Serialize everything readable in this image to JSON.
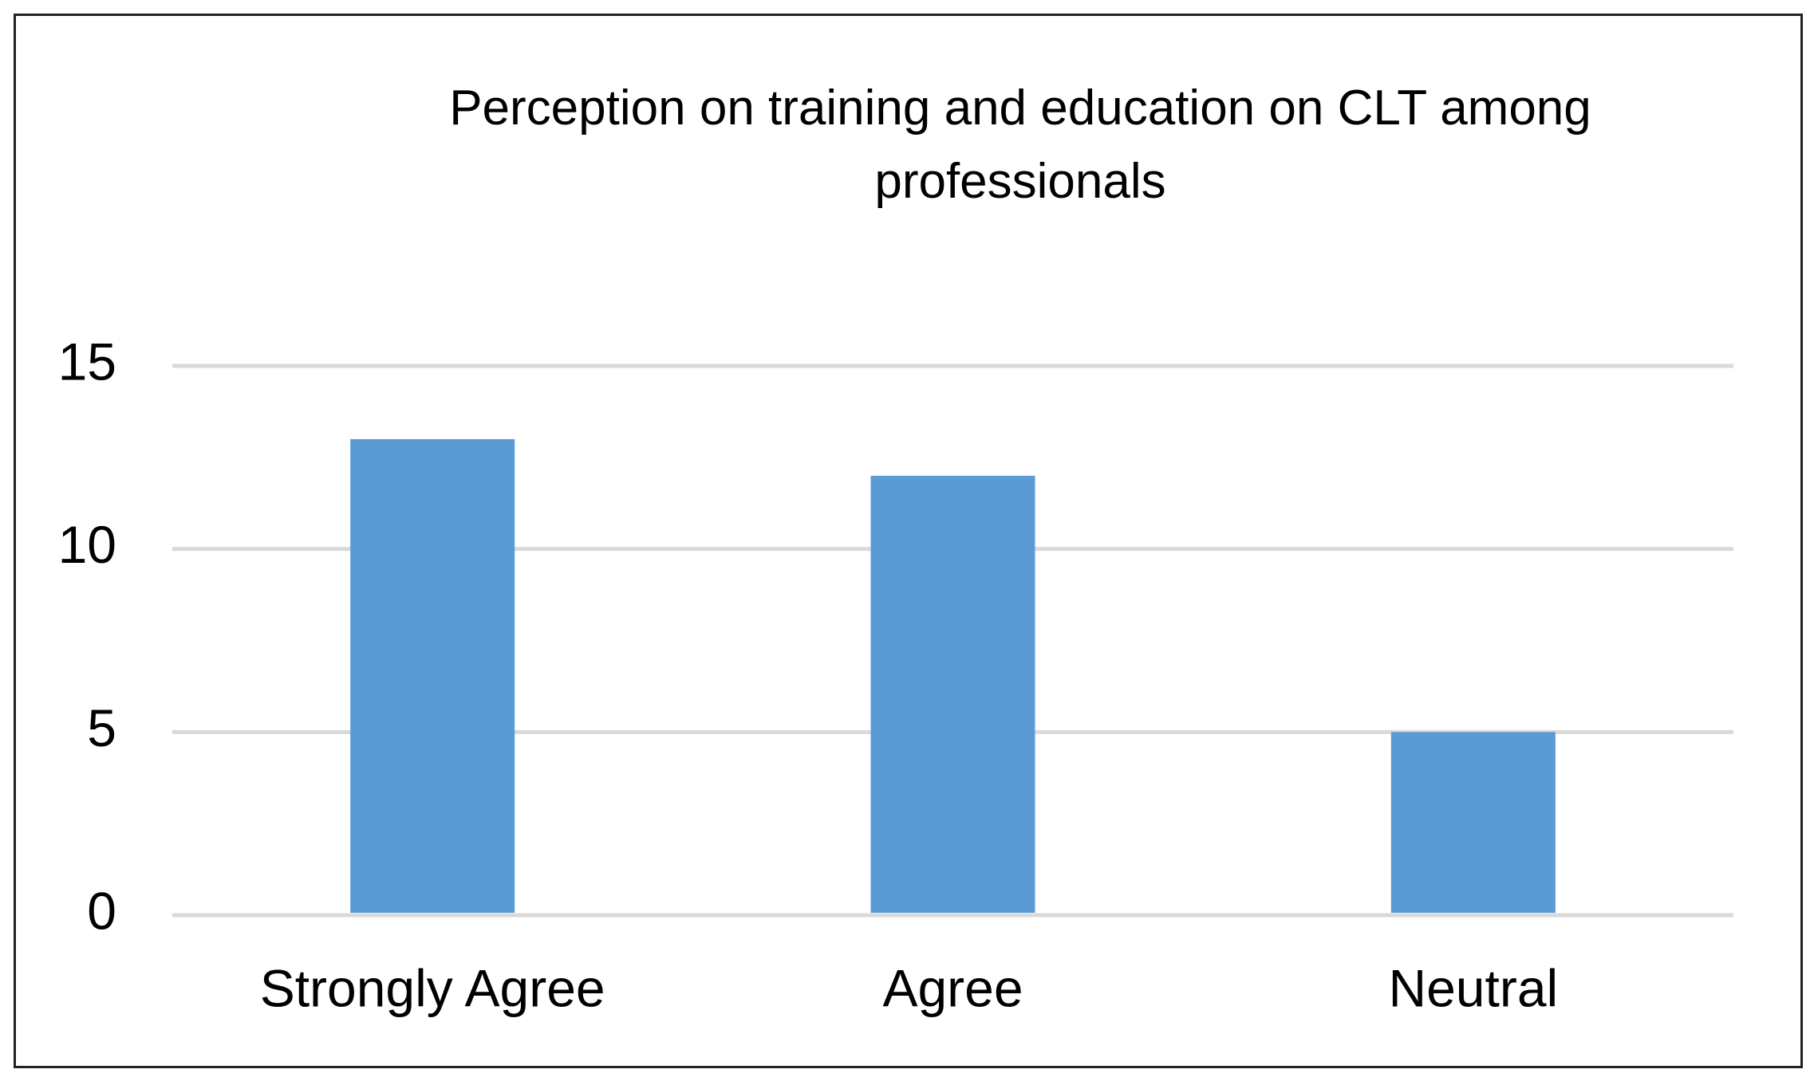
{
  "chart_data": {
    "type": "bar",
    "title": "Perception on training and education on CLT among professionals",
    "categories": [
      "Strongly Agree",
      "Agree",
      "Neutral"
    ],
    "values": [
      13,
      12,
      5
    ],
    "color": "#5b9bd5",
    "ylim": [
      0,
      15
    ],
    "yticks": [
      0,
      5,
      10,
      15
    ],
    "grid": true
  }
}
